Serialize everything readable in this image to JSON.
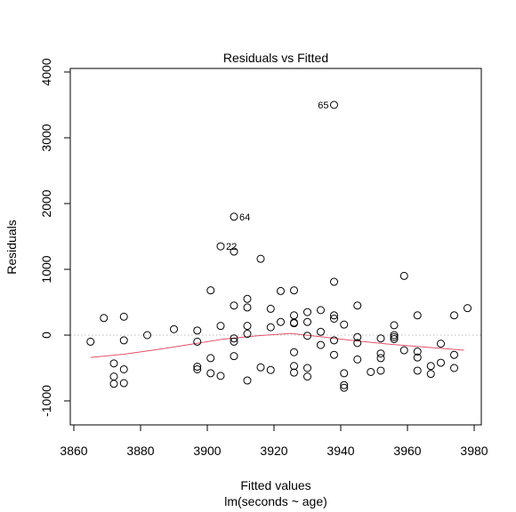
{
  "chart_data": {
    "type": "scatter",
    "title": "Residuals vs Fitted",
    "xlabel": "Fitted values",
    "xlabel_sub": "lm(seconds ~ age)",
    "ylabel": "Residuals",
    "xlim": [
      3860,
      3980
    ],
    "ylim": [
      -1000,
      4000
    ],
    "xticks": [
      3860,
      3880,
      3900,
      3920,
      3940,
      3960,
      3980
    ],
    "yticks": [
      -1000,
      0,
      1000,
      2000,
      3000,
      4000
    ],
    "reference_line": {
      "y": 0,
      "style": "dotted",
      "color": "#bebebe"
    },
    "smooth_color": "#df536b",
    "point_color": "#000000",
    "points": [
      [
        3865,
        -100
      ],
      [
        3869,
        260
      ],
      [
        3872,
        -430
      ],
      [
        3872,
        -630
      ],
      [
        3872,
        -740
      ],
      [
        3875,
        280
      ],
      [
        3875,
        -80
      ],
      [
        3875,
        -520
      ],
      [
        3875,
        -730
      ],
      [
        3882,
        0
      ],
      [
        3890,
        90
      ],
      [
        3897,
        70
      ],
      [
        3897,
        -100
      ],
      [
        3897,
        -480
      ],
      [
        3897,
        -520
      ],
      [
        3901,
        680
      ],
      [
        3901,
        -350
      ],
      [
        3901,
        -580
      ],
      [
        3904,
        1350
      ],
      [
        3904,
        140
      ],
      [
        3904,
        -620
      ],
      [
        3908,
        1800
      ],
      [
        3908,
        1270
      ],
      [
        3908,
        450
      ],
      [
        3908,
        -50
      ],
      [
        3908,
        -100
      ],
      [
        3908,
        -320
      ],
      [
        3912,
        550
      ],
      [
        3912,
        420
      ],
      [
        3912,
        140
      ],
      [
        3912,
        20
      ],
      [
        3912,
        -690
      ],
      [
        3916,
        1160
      ],
      [
        3916,
        -490
      ],
      [
        3919,
        400
      ],
      [
        3919,
        120
      ],
      [
        3919,
        -530
      ],
      [
        3922,
        670
      ],
      [
        3922,
        200
      ],
      [
        3926,
        680
      ],
      [
        3926,
        300
      ],
      [
        3926,
        190
      ],
      [
        3926,
        180
      ],
      [
        3926,
        -260
      ],
      [
        3926,
        -470
      ],
      [
        3926,
        -570
      ],
      [
        3930,
        350
      ],
      [
        3930,
        200
      ],
      [
        3930,
        -10
      ],
      [
        3930,
        -500
      ],
      [
        3930,
        -630
      ],
      [
        3934,
        380
      ],
      [
        3934,
        50
      ],
      [
        3934,
        -150
      ],
      [
        3938,
        3500
      ],
      [
        3938,
        810
      ],
      [
        3938,
        300
      ],
      [
        3938,
        250
      ],
      [
        3938,
        -80
      ],
      [
        3938,
        -300
      ],
      [
        3941,
        160
      ],
      [
        3941,
        -580
      ],
      [
        3941,
        -760
      ],
      [
        3941,
        -800
      ],
      [
        3945,
        450
      ],
      [
        3945,
        -30
      ],
      [
        3945,
        -120
      ],
      [
        3945,
        -370
      ],
      [
        3949,
        -560
      ],
      [
        3952,
        -50
      ],
      [
        3952,
        -280
      ],
      [
        3952,
        -350
      ],
      [
        3952,
        -540
      ],
      [
        3956,
        150
      ],
      [
        3956,
        0
      ],
      [
        3956,
        -30
      ],
      [
        3956,
        -60
      ],
      [
        3959,
        900
      ],
      [
        3959,
        -230
      ],
      [
        3963,
        300
      ],
      [
        3963,
        -250
      ],
      [
        3963,
        -340
      ],
      [
        3963,
        -540
      ],
      [
        3967,
        -470
      ],
      [
        3967,
        -590
      ],
      [
        3970,
        -130
      ],
      [
        3970,
        -420
      ],
      [
        3974,
        300
      ],
      [
        3974,
        -300
      ],
      [
        3974,
        -500
      ],
      [
        3978,
        410
      ]
    ],
    "point_labels": [
      {
        "text": "65",
        "x": 3938,
        "y": 3500,
        "side": "left"
      },
      {
        "text": "64",
        "x": 3908,
        "y": 1800,
        "side": "right"
      },
      {
        "text": "22",
        "x": 3904,
        "y": 1350,
        "side": "right"
      }
    ],
    "smooth": [
      [
        3865,
        -340
      ],
      [
        3875,
        -290
      ],
      [
        3885,
        -220
      ],
      [
        3895,
        -140
      ],
      [
        3905,
        -60
      ],
      [
        3915,
        -10
      ],
      [
        3925,
        25
      ],
      [
        3935,
        -30
      ],
      [
        3945,
        -90
      ],
      [
        3955,
        -140
      ],
      [
        3965,
        -180
      ],
      [
        3977,
        -230
      ]
    ]
  }
}
